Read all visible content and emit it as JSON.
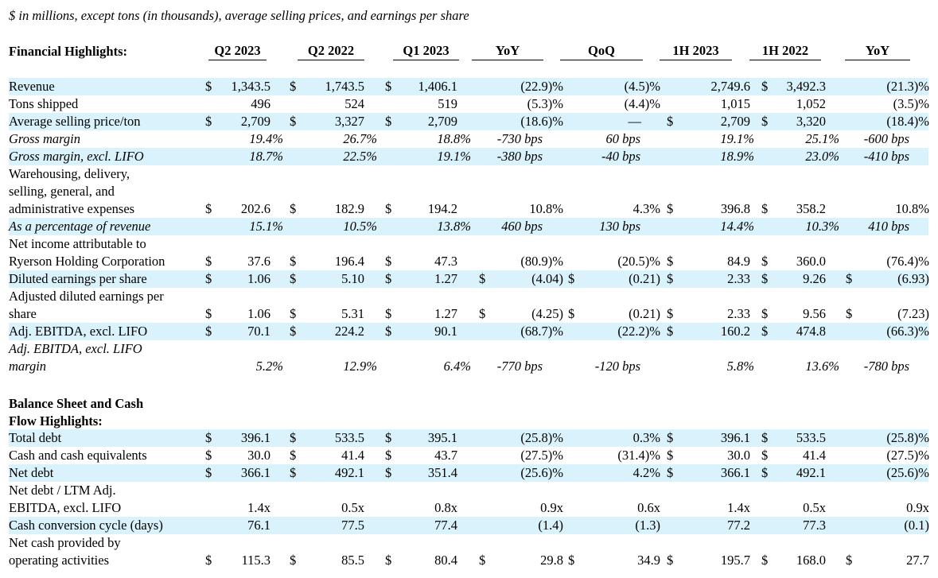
{
  "note": "$ in millions, except tons (in thousands), average selling prices, and earnings per share",
  "section1_title": "Financial Highlights:",
  "section2_title_line1": "Balance Sheet and Cash",
  "section2_title_line2": "Flow Highlights:",
  "headers": [
    "Q2 2023",
    "Q2 2022",
    "Q1 2023",
    "YoY",
    "QoQ",
    "1H 2023",
    "1H 2022",
    "YoY"
  ],
  "rows": [
    {
      "label": [
        "Revenue"
      ],
      "hl": true,
      "cur": [
        1,
        1,
        1,
        0,
        0,
        0,
        1,
        0
      ],
      "cells": [
        "1,343.5",
        "1,743.5",
        "1,406.1",
        "(22.9)%",
        "(4.5)%",
        "2,749.6",
        "3,492.3",
        "(21.3)%"
      ]
    },
    {
      "label": [
        "Tons shipped"
      ],
      "cur": [
        0,
        0,
        0,
        0,
        0,
        0,
        0,
        0
      ],
      "cells": [
        "496",
        "524",
        "519",
        "(5.3)%",
        "(4.4)%",
        "1,015",
        "1,052",
        "(3.5)%"
      ]
    },
    {
      "label": [
        "Average selling price/ton"
      ],
      "hl": true,
      "cur": [
        1,
        1,
        1,
        0,
        0,
        1,
        1,
        0
      ],
      "cells": [
        "2,709",
        "3,327",
        "2,709",
        "(18.6)%",
        "—",
        "2,709",
        "3,320",
        "(18.4)%"
      ]
    },
    {
      "label": [
        "Gross margin"
      ],
      "italic": true,
      "cur": [
        0,
        0,
        0,
        0,
        0,
        0,
        0,
        0
      ],
      "cells": [
        "19.4%",
        "26.7%",
        "18.8%",
        "-730 bps",
        "60 bps",
        "19.1%",
        "25.1%",
        "-600 bps"
      ]
    },
    {
      "label": [
        "Gross margin, excl. LIFO"
      ],
      "italic": true,
      "hl": true,
      "cur": [
        0,
        0,
        0,
        0,
        0,
        0,
        0,
        0
      ],
      "cells": [
        "18.7%",
        "22.5%",
        "19.1%",
        "-380 bps",
        "-40 bps",
        "18.9%",
        "23.0%",
        "-410 bps"
      ]
    },
    {
      "label": [
        "Warehousing, delivery,",
        "selling, general, and",
        "administrative expenses"
      ],
      "cur": [
        1,
        1,
        1,
        0,
        0,
        1,
        1,
        0
      ],
      "cells": [
        "202.6",
        "182.9",
        "194.2",
        "10.8%",
        "4.3%",
        "396.8",
        "358.2",
        "10.8%"
      ]
    },
    {
      "label": [
        "As a percentage of revenue"
      ],
      "italic": true,
      "hl": true,
      "cur": [
        0,
        0,
        0,
        0,
        0,
        0,
        0,
        0
      ],
      "cells": [
        "15.1%",
        "10.5%",
        "13.8%",
        "460 bps",
        "130 bps",
        "14.4%",
        "10.3%",
        "410 bps"
      ]
    },
    {
      "label": [
        "Net income attributable to",
        "Ryerson Holding Corporation"
      ],
      "cur": [
        1,
        1,
        1,
        0,
        0,
        1,
        1,
        0
      ],
      "cells": [
        "37.6",
        "196.4",
        "47.3",
        "(80.9)%",
        "(20.5)%",
        "84.9",
        "360.0",
        "(76.4)%"
      ]
    },
    {
      "label": [
        "Diluted earnings per share"
      ],
      "hl": true,
      "cur": [
        1,
        1,
        1,
        1,
        1,
        1,
        1,
        1
      ],
      "cells": [
        "1.06",
        "5.10",
        "1.27",
        "(4.04)",
        "(0.21)",
        "2.33",
        "9.26",
        "(6.93)"
      ]
    },
    {
      "label": [
        "Adjusted diluted earnings per",
        "share"
      ],
      "cur": [
        1,
        1,
        1,
        1,
        1,
        1,
        1,
        1
      ],
      "cells": [
        "1.06",
        "5.31",
        "1.27",
        "(4.25)",
        "(0.21)",
        "2.33",
        "9.56",
        "(7.23)"
      ]
    },
    {
      "label": [
        "Adj. EBITDA, excl. LIFO"
      ],
      "hl": true,
      "cur": [
        1,
        1,
        1,
        0,
        0,
        1,
        1,
        0
      ],
      "cells": [
        "70.1",
        "224.2",
        "90.1",
        "(68.7)%",
        "(22.2)%",
        "160.2",
        "474.8",
        "(66.3)%"
      ]
    },
    {
      "label": [
        "Adj. EBITDA, excl. LIFO",
        "margin"
      ],
      "italic": true,
      "cur": [
        0,
        0,
        0,
        0,
        0,
        0,
        0,
        0
      ],
      "cells": [
        "5.2%",
        "12.9%",
        "6.4%",
        "-770 bps",
        "-120 bps",
        "5.8%",
        "13.6%",
        "-780 bps"
      ]
    },
    {
      "label": [
        "Total debt"
      ],
      "hl": true,
      "cur": [
        1,
        1,
        1,
        0,
        0,
        1,
        1,
        0
      ],
      "cells": [
        "396.1",
        "533.5",
        "395.1",
        "(25.8)%",
        "0.3%",
        "396.1",
        "533.5",
        "(25.8)%"
      ]
    },
    {
      "label": [
        "Cash and cash equivalents"
      ],
      "cur": [
        1,
        1,
        1,
        0,
        0,
        1,
        1,
        0
      ],
      "cells": [
        "30.0",
        "41.4",
        "43.7",
        "(27.5)%",
        "(31.4)%",
        "30.0",
        "41.4",
        "(27.5)%"
      ]
    },
    {
      "label": [
        "Net debt"
      ],
      "hl": true,
      "cur": [
        1,
        1,
        1,
        0,
        0,
        1,
        1,
        0
      ],
      "cells": [
        "366.1",
        "492.1",
        "351.4",
        "(25.6)%",
        "4.2%",
        "366.1",
        "492.1",
        "(25.6)%"
      ]
    },
    {
      "label": [
        "Net debt / LTM Adj.",
        "EBITDA, excl. LIFO"
      ],
      "cur": [
        0,
        0,
        0,
        0,
        0,
        0,
        0,
        0
      ],
      "cells": [
        "1.4x",
        "0.5x",
        "0.8x",
        "0.9x",
        "0.6x",
        "1.4x",
        "0.5x",
        "0.9x"
      ]
    },
    {
      "label": [
        "Cash conversion cycle (days)"
      ],
      "hl": true,
      "cur": [
        0,
        0,
        0,
        0,
        0,
        0,
        0,
        0
      ],
      "cells": [
        "76.1",
        "77.5",
        "77.4",
        "(1.4)",
        "(1.3)",
        "77.2",
        "77.3",
        "(0.1)"
      ]
    },
    {
      "label": [
        "Net cash provided by",
        "operating activities"
      ],
      "cur": [
        1,
        1,
        1,
        1,
        1,
        1,
        1,
        1
      ],
      "cells": [
        "115.3",
        "85.5",
        "80.4",
        "29.8",
        "34.9",
        "195.7",
        "168.0",
        "27.7"
      ]
    }
  ]
}
